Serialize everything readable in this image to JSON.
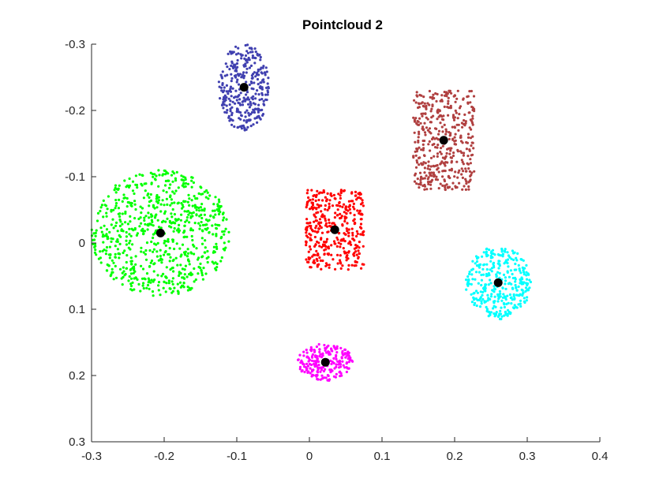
{
  "chart_data": {
    "type": "scatter",
    "title": "Pointcloud 2",
    "xlabel": "",
    "ylabel": "",
    "xlim": [
      -0.3,
      0.4
    ],
    "ylim": [
      -0.3,
      0.3
    ],
    "y_reversed": true,
    "grid": false,
    "x_ticks": [
      "-0.3",
      "-0.2",
      "-0.1",
      "0",
      "0.1",
      "0.2",
      "0.3",
      "0.4"
    ],
    "y_ticks": [
      "-0.3",
      "-0.2",
      "-0.1",
      "0",
      "0.1",
      "0.2",
      "0.3"
    ],
    "series": [
      {
        "color": "#00ff00",
        "center": [
          -0.205,
          -0.015
        ],
        "shape": "ellipse",
        "half_width": [
          0.095,
          0.095
        ],
        "count": 750
      },
      {
        "color": "#4040b0",
        "center": [
          -0.09,
          -0.235
        ],
        "shape": "ellipse",
        "half_width": [
          0.035,
          0.065
        ],
        "count": 320
      },
      {
        "color": "#b04040",
        "center": [
          0.185,
          -0.155
        ],
        "shape": "rect",
        "half_width": [
          0.042,
          0.075
        ],
        "count": 430
      },
      {
        "color": "#ff0000",
        "center": [
          0.035,
          -0.02
        ],
        "shape": "rect",
        "half_width": [
          0.04,
          0.06
        ],
        "count": 380
      },
      {
        "color": "#00ffff",
        "center": [
          0.26,
          0.06
        ],
        "shape": "ellipse",
        "half_width": [
          0.045,
          0.055
        ],
        "count": 340
      },
      {
        "color": "#ff00ff",
        "center": [
          0.022,
          0.18
        ],
        "shape": "ellipse",
        "half_width": [
          0.038,
          0.028
        ],
        "count": 220
      }
    ],
    "centroids": {
      "color": "#000000",
      "points": [
        [
          -0.205,
          -0.015
        ],
        [
          -0.09,
          -0.235
        ],
        [
          0.185,
          -0.155
        ],
        [
          0.035,
          -0.02
        ],
        [
          0.26,
          0.06
        ],
        [
          0.022,
          0.18
        ]
      ]
    }
  }
}
